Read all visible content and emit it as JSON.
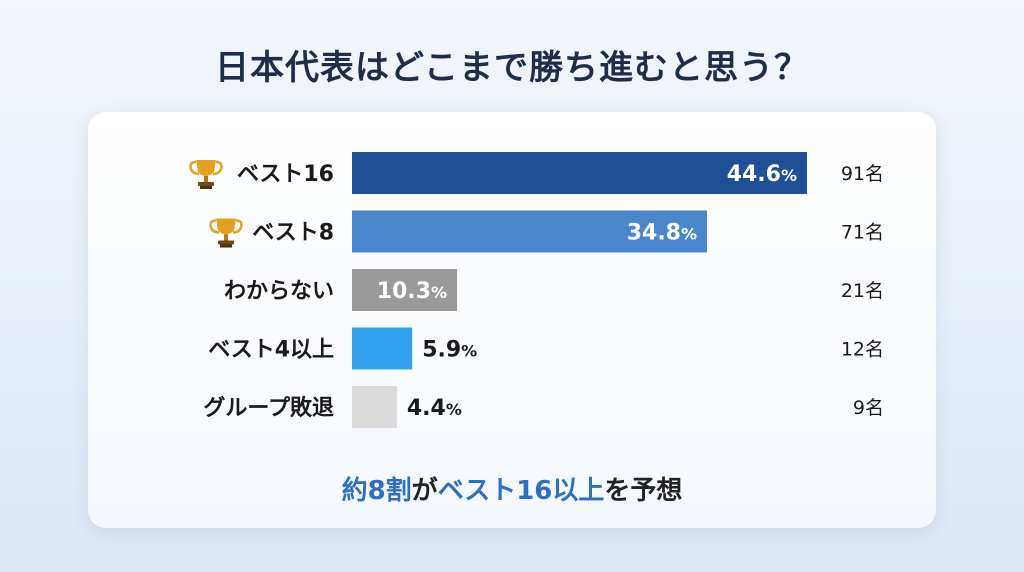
{
  "title": "日本代表はどこまで勝ち進むと思う？",
  "chart_data": {
    "type": "bar",
    "orientation": "horizontal",
    "categories": [
      "ベスト16",
      "ベスト8",
      "わからない",
      "ベスト4以上",
      "グループ敗退"
    ],
    "category_icons": [
      "trophy-icon",
      "trophy-icon",
      "",
      "",
      ""
    ],
    "values": [
      44.6,
      34.8,
      10.3,
      5.9,
      4.4
    ],
    "value_suffix": "%",
    "counts": [
      "91名",
      "71名",
      "21名",
      "12名",
      "9名"
    ],
    "colors": [
      "#1f4f96",
      "#4a86cc",
      "#9a9a9a",
      "#33a0ef",
      "#dadada"
    ],
    "xlim": [
      0,
      44.6
    ]
  },
  "footer": {
    "part1": "約8割",
    "part2": "が",
    "part3": "ベスト16以上",
    "part4": "を予想"
  }
}
